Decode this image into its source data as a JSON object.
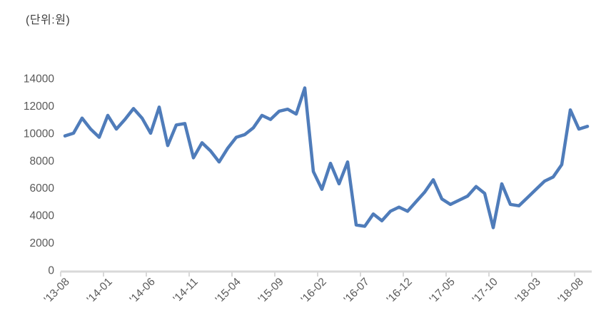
{
  "chart": {
    "unit_label": "(단위:원)"
  },
  "chart_data": {
    "type": "line",
    "title": "",
    "xlabel": "",
    "ylabel": "(단위:원)",
    "start_month": "2013-08",
    "frequency": "monthly",
    "x_tick_labels": [
      "'13-08",
      "'14-01",
      "'14-06",
      "'14-11",
      "'15-04",
      "'15-09",
      "'16-02",
      "'16-07",
      "'16-12",
      "'17-05",
      "'17-10",
      "'18-03",
      "'18-08"
    ],
    "x_tick_every": 5,
    "values": [
      9800,
      10000,
      11100,
      10300,
      9700,
      11300,
      10300,
      11000,
      11800,
      11100,
      10000,
      11900,
      9100,
      10600,
      10700,
      8200,
      9300,
      8700,
      7900,
      8900,
      9700,
      9900,
      10400,
      11300,
      11000,
      11600,
      11750,
      11400,
      13300,
      7200,
      5900,
      7800,
      6300,
      7900,
      3300,
      3200,
      4100,
      3600,
      4300,
      4600,
      4300,
      5000,
      5700,
      6600,
      5200,
      4800,
      5100,
      5400,
      6100,
      5600,
      3100,
      6300,
      4800,
      4700,
      5300,
      5900,
      6500,
      6800,
      7700,
      11700,
      10300,
      10500
    ],
    "ylim": [
      0,
      14000
    ],
    "y_tick_step": 2000,
    "y_tick_labels": [
      "0",
      "2000",
      "4000",
      "6000",
      "8000",
      "10000",
      "12000",
      "14000"
    ],
    "grid": false,
    "legend": "none",
    "line_color": "#4f7cba",
    "axis_color": "#d9d9d9",
    "tick_label_color": "#595959"
  }
}
